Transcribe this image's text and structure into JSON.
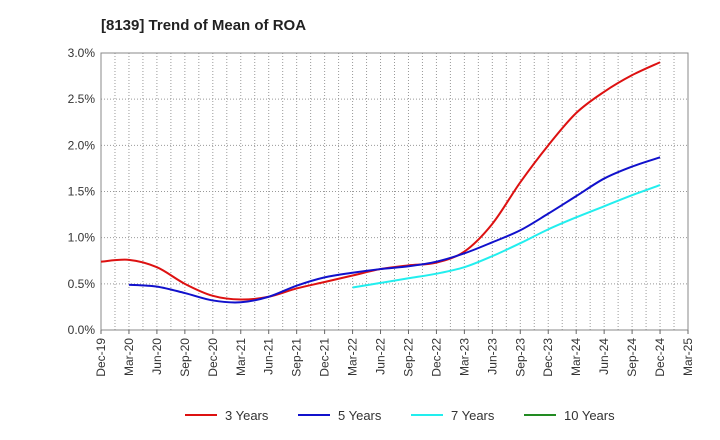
{
  "chart_data": {
    "type": "line",
    "title": "[8139]  Trend of Mean of ROA",
    "xlabel": "",
    "ylabel": "",
    "categories": [
      "Dec-19",
      "Mar-20",
      "Jun-20",
      "Sep-20",
      "Dec-20",
      "Mar-21",
      "Jun-21",
      "Sep-21",
      "Dec-21",
      "Mar-22",
      "Jun-22",
      "Sep-22",
      "Dec-22",
      "Mar-23",
      "Jun-23",
      "Sep-23",
      "Dec-23",
      "Mar-24",
      "Jun-24",
      "Sep-24",
      "Dec-24",
      "Mar-25"
    ],
    "ylim": [
      0,
      3.0
    ],
    "yticks": [
      0,
      0.5,
      1.0,
      1.5,
      2.0,
      2.5,
      3.0
    ],
    "ytick_labels": [
      "0.0%",
      "0.5%",
      "1.0%",
      "1.5%",
      "2.0%",
      "2.5%",
      "3.0%"
    ],
    "grid": true,
    "legend_position": "bottom",
    "series": [
      {
        "name": "3 Years",
        "color": "#dd1111",
        "values": [
          0.74,
          0.76,
          0.68,
          0.5,
          0.37,
          0.33,
          0.36,
          0.45,
          0.52,
          0.59,
          0.66,
          0.7,
          0.73,
          0.85,
          1.15,
          1.6,
          2.0,
          2.35,
          2.58,
          2.76,
          2.9,
          null
        ]
      },
      {
        "name": "5 Years",
        "color": "#1111cc",
        "values": [
          null,
          0.49,
          0.47,
          0.4,
          0.32,
          0.3,
          0.36,
          0.48,
          0.57,
          0.62,
          0.66,
          0.69,
          0.74,
          0.83,
          0.95,
          1.08,
          1.26,
          1.45,
          1.64,
          1.77,
          1.87,
          null
        ]
      },
      {
        "name": "7 Years",
        "color": "#22eeee",
        "values": [
          null,
          null,
          null,
          null,
          null,
          null,
          null,
          null,
          null,
          0.46,
          0.51,
          0.56,
          0.61,
          0.68,
          0.8,
          0.94,
          1.09,
          1.22,
          1.34,
          1.46,
          1.57,
          null
        ]
      },
      {
        "name": "10 Years",
        "color": "#228b22",
        "values": [
          null,
          null,
          null,
          null,
          null,
          null,
          null,
          null,
          null,
          null,
          null,
          null,
          null,
          null,
          null,
          null,
          null,
          null,
          null,
          null,
          null,
          null
        ]
      }
    ]
  }
}
